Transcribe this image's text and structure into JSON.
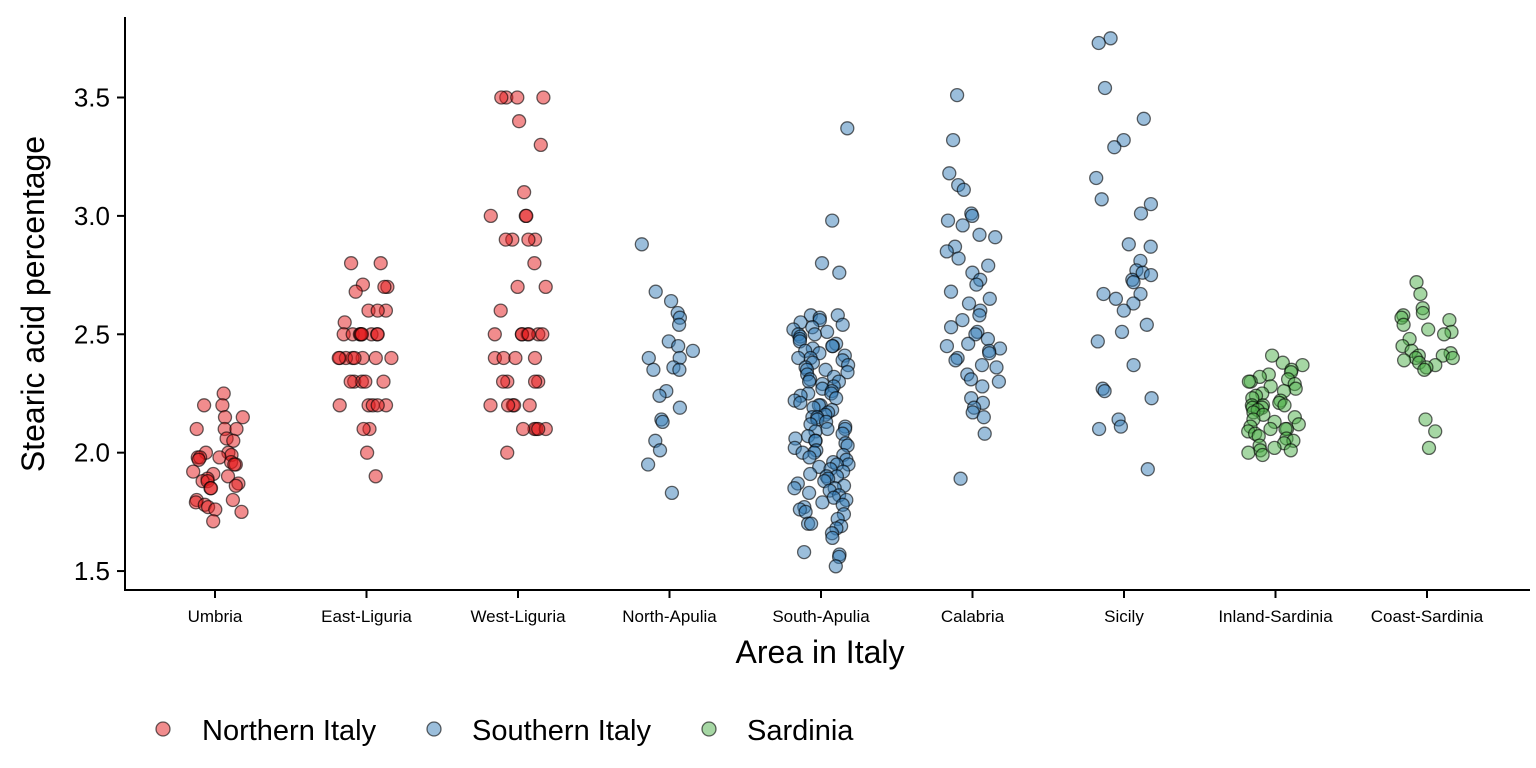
{
  "chart_data": {
    "type": "scatter",
    "xlabel": "Area in Italy",
    "ylabel": "Stearic acid percentage",
    "ylim": [
      1.42,
      3.84
    ],
    "yticks": [
      "1.5",
      "2.0",
      "2.5",
      "3.0",
      "3.5"
    ],
    "categories": [
      "Umbria",
      "East-Liguria",
      "West-Liguria",
      "North-Apulia",
      "South-Apulia",
      "Calabria",
      "Sicily",
      "Inland-Sardinia",
      "Coast-Sardinia"
    ],
    "grid": false,
    "legend_position": "bottom-left",
    "series": [
      {
        "name": "Northern Italy",
        "color": "#E41A1C"
      },
      {
        "name": "Southern Italy",
        "color": "#377EB8"
      },
      {
        "name": "Sardinia",
        "color": "#4DAF4A"
      }
    ],
    "points": {
      "Umbria": [
        2.25,
        2.2,
        2.2,
        2.15,
        2.15,
        2.1,
        2.1,
        2.1,
        2.06,
        2.05,
        2.0,
        2.0,
        1.99,
        1.98,
        1.98,
        1.98,
        1.97,
        1.96,
        1.95,
        1.95,
        1.92,
        1.91,
        1.9,
        1.89,
        1.88,
        1.88,
        1.87,
        1.86,
        1.85,
        1.85,
        1.8,
        1.8,
        1.79,
        1.78,
        1.77,
        1.76,
        1.75,
        1.71
      ],
      "East-Liguria": [
        2.8,
        2.8,
        2.71,
        2.7,
        2.7,
        2.68,
        2.6,
        2.6,
        2.6,
        2.55,
        2.5,
        2.5,
        2.5,
        2.5,
        2.5,
        2.5,
        2.5,
        2.5,
        2.5,
        2.4,
        2.4,
        2.4,
        2.4,
        2.4,
        2.4,
        2.4,
        2.4,
        2.3,
        2.3,
        2.3,
        2.3,
        2.3,
        2.2,
        2.2,
        2.2,
        2.2,
        2.2,
        2.1,
        2.1,
        2.0,
        1.9
      ],
      "West-Liguria": [
        3.5,
        3.5,
        3.5,
        3.5,
        3.4,
        3.3,
        3.1,
        3.0,
        3.0,
        3.0,
        2.9,
        2.9,
        2.9,
        2.9,
        2.8,
        2.7,
        2.7,
        2.6,
        2.5,
        2.5,
        2.5,
        2.5,
        2.5,
        2.5,
        2.5,
        2.4,
        2.4,
        2.4,
        2.4,
        2.3,
        2.3,
        2.3,
        2.3,
        2.2,
        2.2,
        2.2,
        2.2,
        2.2,
        2.1,
        2.1,
        2.1,
        2.1,
        2.1,
        2.0
      ],
      "North-Apulia": [
        2.88,
        2.68,
        2.64,
        2.59,
        2.57,
        2.54,
        2.47,
        2.45,
        2.43,
        2.4,
        2.4,
        2.36,
        2.35,
        2.35,
        2.26,
        2.24,
        2.19,
        2.14,
        2.13,
        2.05,
        2.01,
        1.95,
        1.83
      ],
      "South-Apulia": [
        3.37,
        2.98,
        2.8,
        2.76,
        2.58,
        2.58,
        2.57,
        2.56,
        2.55,
        2.54,
        2.53,
        2.52,
        2.51,
        2.5,
        2.5,
        2.49,
        2.48,
        2.47,
        2.46,
        2.45,
        2.45,
        2.44,
        2.43,
        2.42,
        2.41,
        2.4,
        2.4,
        2.39,
        2.38,
        2.37,
        2.36,
        2.35,
        2.35,
        2.34,
        2.33,
        2.32,
        2.31,
        2.3,
        2.3,
        2.29,
        2.28,
        2.27,
        2.26,
        2.25,
        2.25,
        2.24,
        2.23,
        2.22,
        2.21,
        2.2,
        2.2,
        2.19,
        2.18,
        2.17,
        2.16,
        2.15,
        2.15,
        2.14,
        2.13,
        2.12,
        2.11,
        2.1,
        2.1,
        2.09,
        2.08,
        2.07,
        2.06,
        2.05,
        2.05,
        2.04,
        2.03,
        2.02,
        2.01,
        2.0,
        2.0,
        1.99,
        1.98,
        1.97,
        1.96,
        1.95,
        1.95,
        1.94,
        1.93,
        1.92,
        1.91,
        1.9,
        1.9,
        1.89,
        1.88,
        1.87,
        1.86,
        1.85,
        1.85,
        1.84,
        1.83,
        1.82,
        1.81,
        1.8,
        1.79,
        1.78,
        1.77,
        1.76,
        1.75,
        1.74,
        1.72,
        1.7,
        1.7,
        1.69,
        1.68,
        1.66,
        1.64,
        1.58,
        1.57,
        1.56,
        1.52
      ],
      "Calabria": [
        3.51,
        3.32,
        3.18,
        3.13,
        3.11,
        3.01,
        3.0,
        2.98,
        2.96,
        2.92,
        2.91,
        2.87,
        2.85,
        2.82,
        2.79,
        2.76,
        2.73,
        2.71,
        2.68,
        2.65,
        2.63,
        2.6,
        2.58,
        2.56,
        2.53,
        2.51,
        2.5,
        2.48,
        2.46,
        2.45,
        2.44,
        2.43,
        2.42,
        2.4,
        2.39,
        2.37,
        2.36,
        2.33,
        2.31,
        2.3,
        2.28,
        2.23,
        2.21,
        2.19,
        2.17,
        2.15,
        2.08,
        1.89
      ],
      "Sicily": [
        3.75,
        3.73,
        3.54,
        3.41,
        3.32,
        3.29,
        3.16,
        3.07,
        3.05,
        3.01,
        2.88,
        2.87,
        2.81,
        2.77,
        2.76,
        2.75,
        2.73,
        2.72,
        2.67,
        2.67,
        2.65,
        2.63,
        2.6,
        2.54,
        2.51,
        2.47,
        2.37,
        2.27,
        2.26,
        2.23,
        2.14,
        2.11,
        2.1,
        1.93
      ],
      "Inland-Sardinia": [
        2.41,
        2.38,
        2.37,
        2.35,
        2.34,
        2.33,
        2.32,
        2.31,
        2.3,
        2.3,
        2.29,
        2.28,
        2.27,
        2.26,
        2.25,
        2.24,
        2.23,
        2.22,
        2.21,
        2.2,
        2.2,
        2.2,
        2.19,
        2.19,
        2.18,
        2.17,
        2.16,
        2.15,
        2.14,
        2.13,
        2.12,
        2.11,
        2.1,
        2.1,
        2.1,
        2.09,
        2.08,
        2.07,
        2.06,
        2.05,
        2.04,
        2.03,
        2.02,
        2.01,
        2.01,
        2.0,
        1.99
      ],
      "Coast-Sardinia": [
        2.72,
        2.67,
        2.61,
        2.59,
        2.58,
        2.57,
        2.56,
        2.54,
        2.52,
        2.51,
        2.5,
        2.48,
        2.45,
        2.43,
        2.42,
        2.41,
        2.41,
        2.4,
        2.4,
        2.39,
        2.38,
        2.37,
        2.36,
        2.35,
        2.14,
        2.09,
        2.02
      ]
    },
    "point_series": {
      "Umbria": "Northern Italy",
      "East-Liguria": "Northern Italy",
      "West-Liguria": "Northern Italy",
      "North-Apulia": "Southern Italy",
      "South-Apulia": "Southern Italy",
      "Calabria": "Southern Italy",
      "Sicily": "Southern Italy",
      "Inland-Sardinia": "Sardinia",
      "Coast-Sardinia": "Sardinia"
    }
  }
}
